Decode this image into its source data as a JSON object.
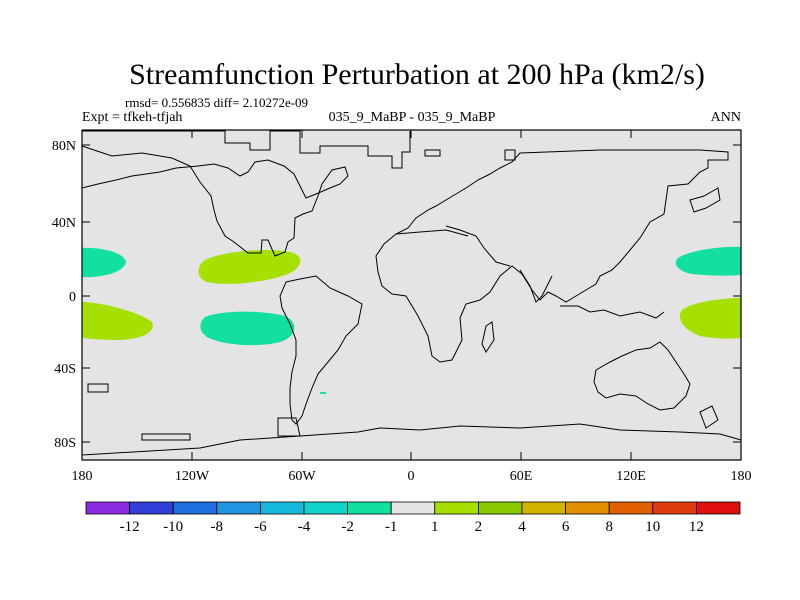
{
  "title": "Streamfunction Perturbation at 200 hPa (km2/s)",
  "stats": "rmsd= 0.556835 diff= 2.10272e-09",
  "experiment": "Expt = tfkeh-tfjah",
  "case": "035_9_MaBP - 035_9_MaBP",
  "season": "ANN",
  "chart_data": {
    "type": "map",
    "projection": "cylindrical-equidistant",
    "lon_range": [
      -180,
      180
    ],
    "lat_range": [
      -90,
      90
    ],
    "x_ticks": [
      "180",
      "120W",
      "60W",
      "0",
      "60E",
      "120E",
      "180"
    ],
    "y_ticks": [
      "80N",
      "40N",
      "0",
      "40S",
      "80S"
    ],
    "colorbar_labels": [
      "-12",
      "-10",
      "-8",
      "-6",
      "-4",
      "-2",
      "-1",
      "1",
      "2",
      "4",
      "6",
      "8",
      "10",
      "12"
    ],
    "colorbar_colors": [
      "#8a2be2",
      "#2f3fd8",
      "#1f6ee0",
      "#1e96e0",
      "#16b8dc",
      "#10d4c8",
      "#12e0a0",
      "#e4e4e4",
      "#a6e000",
      "#8cc800",
      "#d2b400",
      "#e09000",
      "#e06000",
      "#e03a10",
      "#e01010"
    ],
    "blobs": [
      {
        "name": "NH-180-west",
        "lon": [
          -180,
          -157
        ],
        "lat": [
          12,
          25
        ],
        "value_class": "-2"
      },
      {
        "name": "NH-110W",
        "lon": [
          -108,
          -52
        ],
        "lat": [
          8,
          26
        ],
        "value_class": "2"
      },
      {
        "name": "SH-180-west",
        "lon": [
          -180,
          -135
        ],
        "lat": [
          -24,
          -3
        ],
        "value_class": "2"
      },
      {
        "name": "SH-100W",
        "lon": [
          -108,
          -62
        ],
        "lat": [
          -26,
          -9
        ],
        "value_class": "-2"
      },
      {
        "name": "NH-165E",
        "lon": [
          145,
          180
        ],
        "lat": [
          13,
          27
        ],
        "value_class": "-2"
      },
      {
        "name": "SH-165E",
        "lon": [
          148,
          180
        ],
        "lat": [
          -24,
          -1
        ],
        "value_class": "2"
      }
    ]
  }
}
